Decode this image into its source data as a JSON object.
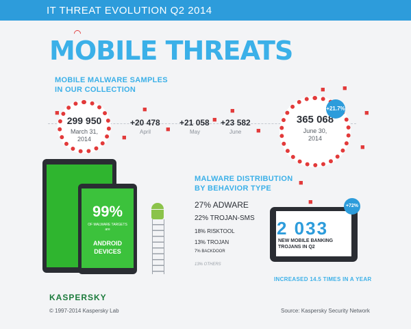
{
  "banner": {
    "text": "IT THREAT EVOLUTION Q2 2014",
    "color": "#2d9cdb"
  },
  "headline": "MOBILE THREATS",
  "samples": {
    "title_line1": "MOBILE MALWARE SAMPLES",
    "title_line2": "IN OUR COLLECTION",
    "start": {
      "value": "299 950",
      "date_line1": "March 31,",
      "date_line2": "2014"
    },
    "increments": [
      {
        "value": "+20 478",
        "month": "April"
      },
      {
        "value": "+21 058",
        "month": "May"
      },
      {
        "value": "+23 582",
        "month": "June"
      }
    ],
    "end": {
      "value": "365 068",
      "date_line1": "June 30,",
      "date_line2": "2014"
    },
    "growth": "+21.7%"
  },
  "android": {
    "percent": "99%",
    "line1": "OF MALWARE TARGETS",
    "line2": "are",
    "line3": "ANDROID",
    "line4": "DEVICES"
  },
  "distribution": {
    "title_line1": "MALWARE DISTRIBUTION",
    "title_line2": "BY BEHAVIOR TYPE",
    "items": [
      "27% ADWARE",
      "22% TROJAN-SMS",
      "18% RISKTOOL",
      "13% TROJAN",
      "7% BACKDOOR",
      "13% OTHERS"
    ]
  },
  "banking": {
    "value": "2 033",
    "caption_line1": "NEW MOBILE BANKING",
    "caption_line2": "TROJANS IN Q2",
    "growth": "+72%",
    "increased": "INCREASED 14.5 TIMES IN A YEAR"
  },
  "footer": {
    "logo": "KASPERSKY",
    "copyright": "© 1997-2014 Kaspersky Lab",
    "source": "Source: Kaspersky Security Network"
  },
  "colors": {
    "accent": "#3bb0e8",
    "threat": "#e23a3a",
    "android": "#2fb52f"
  },
  "icons": [
    "invader-icon",
    "android-robot-icon",
    "ladder-icon",
    "tablet-icon",
    "phone-icon",
    "antenna-icon"
  ]
}
